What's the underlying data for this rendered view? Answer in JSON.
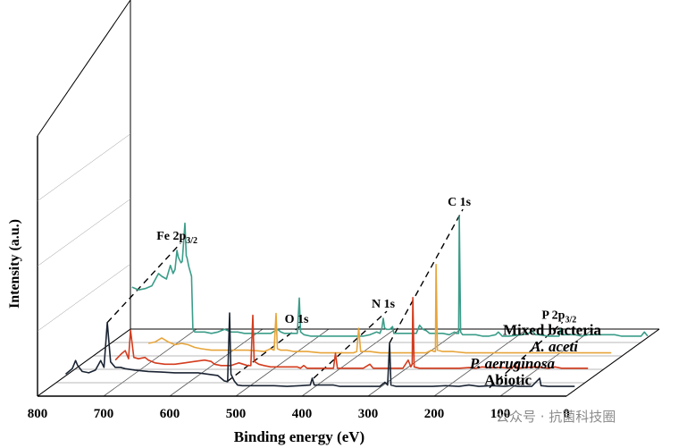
{
  "chart_data": {
    "type": "line",
    "style": "3d-waterfall",
    "xlabel": "Binding energy (eV)",
    "ylabel": "Intensity (a.u.)",
    "xlim": [
      800,
      0
    ],
    "x_ticks": [
      "800",
      "700",
      "600",
      "500",
      "400",
      "300",
      "200",
      "100",
      "0"
    ],
    "grid": true,
    "series": [
      {
        "name": "Abiotic",
        "color": "#1b2433",
        "points": [
          [
            775,
            20
          ],
          [
            765,
            28
          ],
          [
            760,
            40
          ],
          [
            757,
            33
          ],
          [
            750,
            24
          ],
          [
            740,
            22
          ],
          [
            730,
            26
          ],
          [
            722,
            40
          ],
          [
            717,
            30
          ],
          [
            712,
            96
          ],
          [
            707,
            38
          ],
          [
            700,
            30
          ],
          [
            692,
            30
          ],
          [
            685,
            28
          ],
          [
            670,
            26
          ],
          [
            650,
            24
          ],
          [
            630,
            23
          ],
          [
            610,
            22
          ],
          [
            590,
            22
          ],
          [
            575,
            22
          ],
          [
            560,
            20
          ],
          [
            545,
            18
          ],
          [
            535,
            10
          ],
          [
            530,
            9
          ],
          [
            527,
            110
          ],
          [
            525,
            20
          ],
          [
            520,
            10
          ],
          [
            515,
            4
          ],
          [
            508,
            3
          ],
          [
            500,
            3
          ],
          [
            480,
            3
          ],
          [
            460,
            3
          ],
          [
            440,
            2
          ],
          [
            420,
            3
          ],
          [
            405,
            4
          ],
          [
            402,
            14
          ],
          [
            399,
            4
          ],
          [
            385,
            4
          ],
          [
            370,
            4
          ],
          [
            360,
            2
          ],
          [
            350,
            2
          ],
          [
            340,
            2
          ],
          [
            330,
            2
          ],
          [
            320,
            2
          ],
          [
            300,
            2
          ],
          [
            292,
            8
          ],
          [
            288,
            4
          ],
          [
            285,
            66
          ],
          [
            283,
            4
          ],
          [
            275,
            2
          ],
          [
            250,
            2
          ],
          [
            240,
            2
          ],
          [
            230,
            2
          ],
          [
            220,
            2
          ],
          [
            200,
            3
          ],
          [
            180,
            2
          ],
          [
            165,
            4
          ],
          [
            150,
            2
          ],
          [
            130,
            3
          ],
          [
            110,
            2
          ],
          [
            100,
            3
          ],
          [
            90,
            2
          ],
          [
            70,
            2
          ],
          [
            58,
            14
          ],
          [
            56,
            3
          ],
          [
            45,
            2
          ],
          [
            30,
            2
          ],
          [
            15,
            2
          ],
          [
            5,
            2
          ]
        ]
      },
      {
        "name": "P. aeruginosa",
        "color": "#d33c1e",
        "points": [
          [
            735,
            16
          ],
          [
            725,
            26
          ],
          [
            720,
            30
          ],
          [
            715,
            18
          ],
          [
            712,
            60
          ],
          [
            707,
            20
          ],
          [
            700,
            18
          ],
          [
            690,
            20
          ],
          [
            685,
            16
          ],
          [
            675,
            12
          ],
          [
            660,
            10
          ],
          [
            645,
            10
          ],
          [
            630,
            12
          ],
          [
            615,
            14
          ],
          [
            600,
            16
          ],
          [
            590,
            14
          ],
          [
            585,
            10
          ],
          [
            575,
            8
          ],
          [
            560,
            8
          ],
          [
            548,
            12
          ],
          [
            535,
            8
          ],
          [
            530,
            8
          ],
          [
            527,
            82
          ],
          [
            525,
            14
          ],
          [
            518,
            10
          ],
          [
            510,
            8
          ],
          [
            500,
            6
          ],
          [
            490,
            6
          ],
          [
            470,
            6
          ],
          [
            460,
            6
          ],
          [
            455,
            4
          ],
          [
            450,
            8
          ],
          [
            445,
            4
          ],
          [
            430,
            4
          ],
          [
            415,
            4
          ],
          [
            405,
            4
          ],
          [
            402,
            26
          ],
          [
            399,
            4
          ],
          [
            385,
            4
          ],
          [
            360,
            4
          ],
          [
            350,
            10
          ],
          [
            345,
            4
          ],
          [
            330,
            4
          ],
          [
            320,
            4
          ],
          [
            310,
            4
          ],
          [
            300,
            4
          ],
          [
            292,
            16
          ],
          [
            288,
            6
          ],
          [
            286,
            10
          ],
          [
            285,
            108
          ],
          [
            283,
            6
          ],
          [
            275,
            4
          ],
          [
            260,
            4
          ],
          [
            245,
            4
          ],
          [
            240,
            4
          ],
          [
            230,
            4
          ],
          [
            215,
            4
          ],
          [
            200,
            5
          ],
          [
            190,
            4
          ],
          [
            180,
            6
          ],
          [
            170,
            5
          ],
          [
            150,
            5
          ],
          [
            135,
            4
          ],
          [
            130,
            10
          ],
          [
            128,
            4
          ],
          [
            115,
            5
          ],
          [
            100,
            6
          ],
          [
            80,
            4
          ],
          [
            70,
            6
          ],
          [
            60,
            4
          ],
          [
            40,
            4
          ],
          [
            20,
            4
          ]
        ]
      },
      {
        "name": "A. aceti",
        "color": "#e7a53b",
        "points": [
          [
            720,
            16
          ],
          [
            710,
            18
          ],
          [
            700,
            24
          ],
          [
            690,
            18
          ],
          [
            680,
            14
          ],
          [
            670,
            16
          ],
          [
            660,
            14
          ],
          [
            650,
            10
          ],
          [
            640,
            8
          ],
          [
            625,
            6
          ],
          [
            610,
            6
          ],
          [
            590,
            6
          ],
          [
            570,
            6
          ],
          [
            555,
            5
          ],
          [
            545,
            4
          ],
          [
            535,
            8
          ],
          [
            530,
            6
          ],
          [
            527,
            60
          ],
          [
            525,
            8
          ],
          [
            520,
            6
          ],
          [
            510,
            6
          ],
          [
            500,
            4
          ],
          [
            480,
            4
          ],
          [
            460,
            2
          ],
          [
            440,
            2
          ],
          [
            425,
            2
          ],
          [
            410,
            2
          ],
          [
            405,
            4
          ],
          [
            402,
            38
          ],
          [
            399,
            4
          ],
          [
            385,
            4
          ],
          [
            370,
            2
          ],
          [
            350,
            2
          ],
          [
            330,
            2
          ],
          [
            300,
            2
          ],
          [
            292,
            6
          ],
          [
            288,
            4
          ],
          [
            286,
            4
          ],
          [
            285,
            132
          ],
          [
            283,
            6
          ],
          [
            275,
            4
          ],
          [
            260,
            4
          ],
          [
            240,
            2
          ],
          [
            220,
            2
          ],
          [
            200,
            2
          ],
          [
            180,
            2
          ],
          [
            160,
            2
          ],
          [
            140,
            2
          ],
          [
            120,
            2
          ],
          [
            100,
            2
          ],
          [
            80,
            2
          ],
          [
            60,
            2
          ],
          [
            40,
            2
          ],
          [
            20,
            2
          ]
        ]
      },
      {
        "name": "Mixed bacteria",
        "color": "#3b9d89",
        "points": [
          [
            780,
            74
          ],
          [
            770,
            70
          ],
          [
            760,
            72
          ],
          [
            750,
            76
          ],
          [
            740,
            94
          ],
          [
            735,
            90
          ],
          [
            728,
            86
          ],
          [
            722,
            106
          ],
          [
            718,
            94
          ],
          [
            715,
            100
          ],
          [
            712,
            128
          ],
          [
            710,
            118
          ],
          [
            706,
            110
          ],
          [
            704,
            112
          ],
          [
            700,
            168
          ],
          [
            698,
            120
          ],
          [
            697,
            118
          ],
          [
            694,
            104
          ],
          [
            690,
            90
          ],
          [
            688,
            12
          ],
          [
            685,
            8
          ],
          [
            680,
            8
          ],
          [
            670,
            8
          ],
          [
            660,
            6
          ],
          [
            650,
            8
          ],
          [
            640,
            12
          ],
          [
            630,
            8
          ],
          [
            620,
            8
          ],
          [
            610,
            6
          ],
          [
            600,
            6
          ],
          [
            590,
            6
          ],
          [
            580,
            6
          ],
          [
            570,
            6
          ],
          [
            560,
            12
          ],
          [
            555,
            8
          ],
          [
            550,
            6
          ],
          [
            540,
            6
          ],
          [
            530,
            6
          ],
          [
            527,
            58
          ],
          [
            525,
            8
          ],
          [
            520,
            4
          ],
          [
            510,
            2
          ],
          [
            500,
            2
          ],
          [
            490,
            2
          ],
          [
            480,
            2
          ],
          [
            470,
            2
          ],
          [
            460,
            2
          ],
          [
            450,
            2
          ],
          [
            440,
            2
          ],
          [
            430,
            2
          ],
          [
            420,
            4
          ],
          [
            410,
            8
          ],
          [
            405,
            6
          ],
          [
            402,
            14
          ],
          [
            400,
            28
          ],
          [
            398,
            14
          ],
          [
            395,
            12
          ],
          [
            390,
            12
          ],
          [
            386,
            16
          ],
          [
            384,
            6
          ],
          [
            380,
            6
          ],
          [
            370,
            6
          ],
          [
            360,
            6
          ],
          [
            350,
            6
          ],
          [
            345,
            18
          ],
          [
            340,
            12
          ],
          [
            335,
            10
          ],
          [
            330,
            6
          ],
          [
            320,
            6
          ],
          [
            310,
            6
          ],
          [
            300,
            4
          ],
          [
            292,
            8
          ],
          [
            290,
            6
          ],
          [
            286,
            6
          ],
          [
            285,
            178
          ],
          [
            283,
            8
          ],
          [
            280,
            4
          ],
          [
            275,
            4
          ],
          [
            270,
            4
          ],
          [
            260,
            4
          ],
          [
            250,
            2
          ],
          [
            240,
            2
          ],
          [
            230,
            4
          ],
          [
            226,
            8
          ],
          [
            222,
            4
          ],
          [
            220,
            2
          ],
          [
            210,
            2
          ],
          [
            190,
            4
          ],
          [
            180,
            6
          ],
          [
            175,
            10
          ],
          [
            170,
            4
          ],
          [
            165,
            4
          ],
          [
            150,
            2
          ],
          [
            140,
            2
          ],
          [
            134,
            2
          ],
          [
            132,
            12
          ],
          [
            130,
            4
          ],
          [
            120,
            4
          ],
          [
            110,
            4
          ],
          [
            100,
            2
          ],
          [
            90,
            4
          ],
          [
            80,
            4
          ],
          [
            70,
            4
          ],
          [
            60,
            4
          ],
          [
            50,
            4
          ],
          [
            40,
            2
          ],
          [
            30,
            2
          ],
          [
            20,
            2
          ],
          [
            10,
            2
          ],
          [
            5,
            8
          ],
          [
            0,
            2
          ]
        ]
      }
    ],
    "annotations": [
      {
        "label": "Fe 2p",
        "sub": "3/2",
        "x": 712
      },
      {
        "label": "O 1s",
        "x": 531
      },
      {
        "label": "N 1s",
        "x": 400
      },
      {
        "label": "C 1s",
        "x": 285
      },
      {
        "label": "P 2p",
        "sub": "3/2",
        "x": 134
      }
    ]
  },
  "watermark": "公众号 · 抗菌科技圈"
}
